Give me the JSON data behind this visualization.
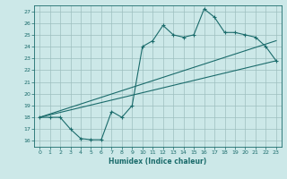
{
  "xlabel": "Humidex (Indice chaleur)",
  "bg_color": "#cce8e8",
  "grid_color": "#9dbfbf",
  "line_color": "#1a6b6b",
  "xlim": [
    -0.5,
    23.5
  ],
  "ylim": [
    15.5,
    27.5
  ],
  "xticks": [
    0,
    1,
    2,
    3,
    4,
    5,
    6,
    7,
    8,
    9,
    10,
    11,
    12,
    13,
    14,
    15,
    16,
    17,
    18,
    19,
    20,
    21,
    22,
    23
  ],
  "yticks": [
    16,
    17,
    18,
    19,
    20,
    21,
    22,
    23,
    24,
    25,
    26,
    27
  ],
  "main_x": [
    0,
    1,
    2,
    3,
    4,
    5,
    6,
    7,
    8,
    9,
    10,
    11,
    12,
    13,
    14,
    15,
    16,
    17,
    18,
    19,
    20,
    21,
    22,
    23
  ],
  "main_y": [
    18,
    18,
    18,
    17,
    16.2,
    16.1,
    16.1,
    18.5,
    18,
    19,
    24,
    24.5,
    25.8,
    25,
    24.8,
    25,
    27.2,
    26.5,
    25.2,
    25.2,
    25,
    24.8,
    24,
    22.8
  ],
  "line2_x": [
    0,
    23
  ],
  "line2_y": [
    18.0,
    22.8
  ],
  "line3_x": [
    0,
    23
  ],
  "line3_y": [
    18.0,
    24.5
  ]
}
